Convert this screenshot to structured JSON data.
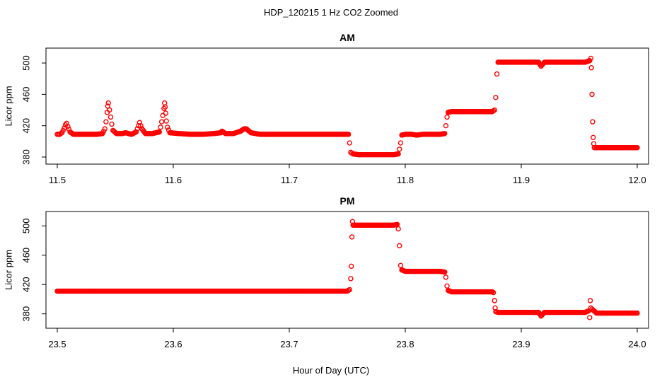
{
  "figure": {
    "title": "HDP_120215  1 Hz CO2 Zoomed",
    "xlabel": "Hour of Day (UTC)",
    "point_color": "#ff0000"
  },
  "chart_data": [
    {
      "type": "scatter",
      "title": "AM",
      "xlabel": "Hour of Day (UTC)",
      "ylabel": "Licor ppm",
      "xlim": [
        11.5,
        12.0
      ],
      "ylim": [
        380,
        510
      ],
      "x_ticks": [
        11.5,
        11.6,
        11.7,
        11.8,
        11.9,
        12.0
      ],
      "x_tick_labels": [
        "11.5",
        "11.6",
        "11.7",
        "11.8",
        "11.9",
        "12.0"
      ],
      "y_ticks": [
        380,
        420,
        460,
        500
      ],
      "y_tick_labels": [
        "380",
        "420",
        "460",
        "500"
      ],
      "series": [
        {
          "marker": "open-circle",
          "color": "#ff0000",
          "points": [
            [
              11.5,
              409
            ],
            [
              11.502,
              409
            ],
            [
              11.504,
              411
            ],
            [
              11.506,
              417
            ],
            [
              11.507,
              421
            ],
            [
              11.508,
              423
            ],
            [
              11.509,
              419
            ],
            [
              11.511,
              412
            ],
            [
              11.514,
              409
            ],
            [
              11.52,
              409
            ],
            [
              11.527,
              409
            ],
            [
              11.534,
              409
            ],
            [
              11.539,
              410
            ],
            [
              11.541,
              416
            ],
            [
              11.542,
              425
            ],
            [
              11.543,
              437
            ],
            [
              11.5435,
              445
            ],
            [
              11.544,
              449
            ],
            [
              11.545,
              440
            ],
            [
              11.546,
              431
            ],
            [
              11.547,
              422
            ],
            [
              11.548,
              414
            ],
            [
              11.551,
              410
            ],
            [
              11.556,
              410
            ],
            [
              11.559,
              411
            ],
            [
              11.564,
              409
            ],
            [
              11.568,
              412
            ],
            [
              11.57,
              420
            ],
            [
              11.571,
              424
            ],
            [
              11.573,
              416
            ],
            [
              11.576,
              410
            ],
            [
              11.582,
              410
            ],
            [
              11.588,
              412
            ],
            [
              11.589,
              418
            ],
            [
              11.59,
              425
            ],
            [
              11.591,
              433
            ],
            [
              11.592,
              442
            ],
            [
              11.5925,
              449
            ],
            [
              11.593,
              444
            ],
            [
              11.5935,
              436
            ],
            [
              11.594,
              426
            ],
            [
              11.595,
              418
            ],
            [
              11.597,
              411
            ],
            [
              11.605,
              410
            ],
            [
              11.615,
              409
            ],
            [
              11.625,
              409
            ],
            [
              11.635,
              410
            ],
            [
              11.641,
              411
            ],
            [
              11.642,
              413
            ],
            [
              11.645,
              410
            ],
            [
              11.652,
              410
            ],
            [
              11.658,
              413
            ],
            [
              11.661,
              416
            ],
            [
              11.663,
              416
            ],
            [
              11.667,
              411
            ],
            [
              11.675,
              409
            ],
            [
              11.685,
              409
            ],
            [
              11.695,
              409
            ],
            [
              11.705,
              409
            ],
            [
              11.715,
              409
            ],
            [
              11.725,
              409
            ],
            [
              11.735,
              409
            ],
            [
              11.745,
              409
            ],
            [
              11.751,
              409
            ],
            [
              11.752,
              398
            ],
            [
              11.753,
              386
            ],
            [
              11.755,
              384
            ],
            [
              11.76,
              383
            ],
            [
              11.765,
              383
            ],
            [
              11.77,
              383
            ],
            [
              11.775,
              383
            ],
            [
              11.78,
              383
            ],
            [
              11.785,
              383
            ],
            [
              11.79,
              383
            ],
            [
              11.794,
              384
            ],
            [
              11.795,
              390
            ],
            [
              11.796,
              398
            ],
            [
              11.797,
              408
            ],
            [
              11.8,
              409
            ],
            [
              11.805,
              409
            ],
            [
              11.81,
              408
            ],
            [
              11.815,
              409
            ],
            [
              11.82,
              409
            ],
            [
              11.825,
              409
            ],
            [
              11.83,
              409
            ],
            [
              11.834,
              410
            ],
            [
              11.835,
              420
            ],
            [
              11.836,
              431
            ],
            [
              11.837,
              437
            ],
            [
              11.84,
              438
            ],
            [
              11.845,
              438
            ],
            [
              11.85,
              438
            ],
            [
              11.855,
              438
            ],
            [
              11.86,
              438
            ],
            [
              11.865,
              438
            ],
            [
              11.87,
              438
            ],
            [
              11.875,
              438
            ],
            [
              11.877,
              440
            ],
            [
              11.878,
              456
            ],
            [
              11.879,
              486
            ],
            [
              11.88,
              501
            ],
            [
              11.885,
              501
            ],
            [
              11.89,
              501
            ],
            [
              11.895,
              501
            ],
            [
              11.9,
              501
            ],
            [
              11.905,
              501
            ],
            [
              11.91,
              501
            ],
            [
              11.915,
              501
            ],
            [
              11.917,
              496
            ],
            [
              11.92,
              501
            ],
            [
              11.925,
              501
            ],
            [
              11.93,
              501
            ],
            [
              11.935,
              501
            ],
            [
              11.94,
              501
            ],
            [
              11.945,
              501
            ],
            [
              11.95,
              501
            ],
            [
              11.955,
              501
            ],
            [
              11.959,
              503
            ],
            [
              11.96,
              506
            ],
            [
              11.9605,
              494
            ],
            [
              11.961,
              460
            ],
            [
              11.9615,
              425
            ],
            [
              11.962,
              405
            ],
            [
              11.9625,
              397
            ],
            [
              11.963,
              392
            ],
            [
              11.965,
              392
            ],
            [
              11.97,
              392
            ],
            [
              11.975,
              392
            ],
            [
              11.98,
              392
            ],
            [
              11.985,
              392
            ],
            [
              11.99,
              392
            ],
            [
              11.995,
              392
            ],
            [
              12.0,
              392
            ]
          ]
        }
      ]
    },
    {
      "type": "scatter",
      "title": "PM",
      "xlabel": "Hour of Day (UTC)",
      "ylabel": "Licor ppm",
      "xlim": [
        23.5,
        24.0
      ],
      "ylim": [
        370,
        510
      ],
      "x_ticks": [
        23.5,
        23.6,
        23.7,
        23.8,
        23.9,
        24.0
      ],
      "x_tick_labels": [
        "23.5",
        "23.6",
        "23.7",
        "23.8",
        "23.9",
        "24.0"
      ],
      "y_ticks": [
        380,
        420,
        460,
        500
      ],
      "y_tick_labels": [
        "380",
        "420",
        "460",
        "500"
      ],
      "series": [
        {
          "marker": "open-circle",
          "color": "#ff0000",
          "points": [
            [
              23.5,
              411
            ],
            [
              23.51,
              411
            ],
            [
              23.52,
              411
            ],
            [
              23.53,
              411
            ],
            [
              23.54,
              411
            ],
            [
              23.55,
              411
            ],
            [
              23.56,
              411
            ],
            [
              23.57,
              411
            ],
            [
              23.58,
              411
            ],
            [
              23.59,
              411
            ],
            [
              23.6,
              411
            ],
            [
              23.61,
              411
            ],
            [
              23.62,
              411
            ],
            [
              23.63,
              411
            ],
            [
              23.64,
              411
            ],
            [
              23.65,
              411
            ],
            [
              23.66,
              411
            ],
            [
              23.67,
              411
            ],
            [
              23.68,
              411
            ],
            [
              23.69,
              411
            ],
            [
              23.7,
              411
            ],
            [
              23.71,
              411
            ],
            [
              23.72,
              411
            ],
            [
              23.73,
              411
            ],
            [
              23.74,
              411
            ],
            [
              23.75,
              411
            ],
            [
              23.752,
              413
            ],
            [
              23.753,
              428
            ],
            [
              23.7535,
              445
            ],
            [
              23.754,
              485
            ],
            [
              23.7545,
              506
            ],
            [
              23.755,
              501
            ],
            [
              23.76,
              501
            ],
            [
              23.765,
              501
            ],
            [
              23.77,
              501
            ],
            [
              23.775,
              501
            ],
            [
              23.78,
              501
            ],
            [
              23.785,
              501
            ],
            [
              23.79,
              501
            ],
            [
              23.793,
              502
            ],
            [
              23.794,
              496
            ],
            [
              23.795,
              473
            ],
            [
              23.796,
              446
            ],
            [
              23.797,
              440
            ],
            [
              23.8,
              438
            ],
            [
              23.805,
              438
            ],
            [
              23.81,
              438
            ],
            [
              23.815,
              438
            ],
            [
              23.82,
              438
            ],
            [
              23.825,
              438
            ],
            [
              23.83,
              438
            ],
            [
              23.834,
              437
            ],
            [
              23.835,
              430
            ],
            [
              23.836,
              418
            ],
            [
              23.837,
              412
            ],
            [
              23.84,
              410
            ],
            [
              23.845,
              410
            ],
            [
              23.85,
              410
            ],
            [
              23.855,
              410
            ],
            [
              23.86,
              410
            ],
            [
              23.865,
              410
            ],
            [
              23.87,
              410
            ],
            [
              23.875,
              410
            ],
            [
              23.876,
              409
            ],
            [
              23.877,
              398
            ],
            [
              23.8775,
              388
            ],
            [
              23.878,
              383
            ],
            [
              23.88,
              382
            ],
            [
              23.885,
              382
            ],
            [
              23.89,
              382
            ],
            [
              23.895,
              382
            ],
            [
              23.9,
              382
            ],
            [
              23.905,
              382
            ],
            [
              23.91,
              382
            ],
            [
              23.915,
              382
            ],
            [
              23.917,
              377
            ],
            [
              23.92,
              382
            ],
            [
              23.925,
              382
            ],
            [
              23.93,
              382
            ],
            [
              23.935,
              382
            ],
            [
              23.94,
              382
            ],
            [
              23.945,
              382
            ],
            [
              23.95,
              382
            ],
            [
              23.955,
              382
            ],
            [
              23.958,
              384
            ],
            [
              23.959,
              375
            ],
            [
              23.9595,
              398
            ],
            [
              23.96,
              388
            ],
            [
              23.962,
              385
            ],
            [
              23.965,
              381
            ],
            [
              23.97,
              381
            ],
            [
              23.975,
              381
            ],
            [
              23.98,
              381
            ],
            [
              23.985,
              381
            ],
            [
              23.99,
              381
            ],
            [
              23.995,
              381
            ],
            [
              24.0,
              381
            ]
          ]
        }
      ]
    }
  ]
}
